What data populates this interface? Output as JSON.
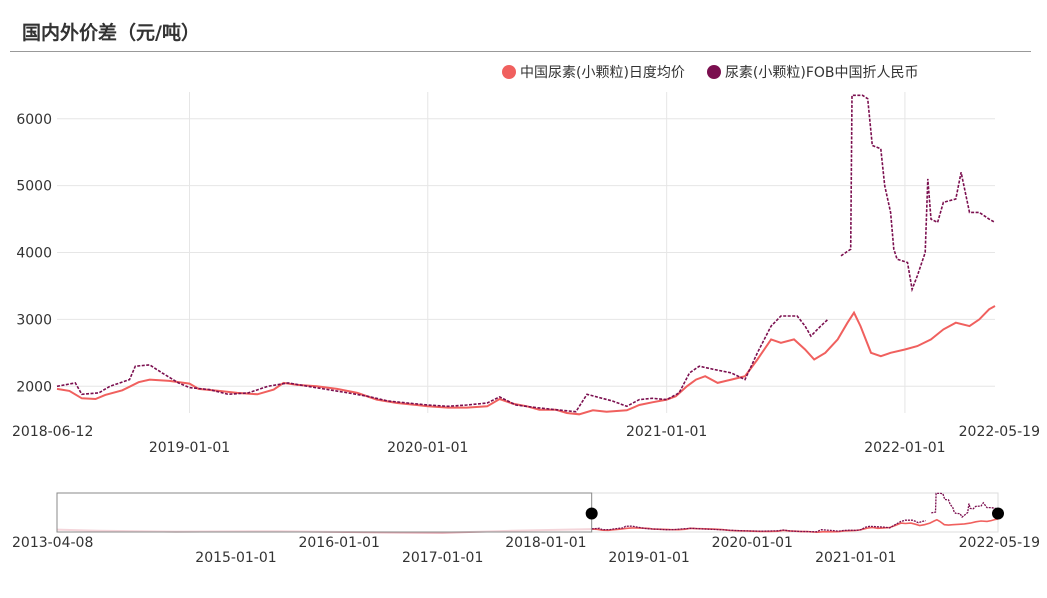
{
  "title": "国内外价差（元/吨）",
  "colors": {
    "domestic": "#f0605e",
    "fob": "#7b0f4f",
    "grid": "#e6e6e6"
  },
  "chart_data": {
    "type": "line",
    "title": "国内外价差（元/吨）",
    "legend_position": "top-right",
    "grid": true,
    "x_range": [
      "2018-06-12",
      "2022-05-19"
    ],
    "ylim": [
      1600,
      6400
    ],
    "y_ticks": [
      2000,
      3000,
      4000,
      5000,
      6000
    ],
    "x_ticks_top": [
      "2018-06-12",
      "2021-01-01",
      "2022-05-19"
    ],
    "x_ticks_bottom": [
      "2019-01-01",
      "2020-01-01",
      "2022-01-01"
    ],
    "series": [
      {
        "name": "中国尿素(小颗粒)日度均价",
        "color": "#f0605e",
        "points": [
          [
            "2018-06-12",
            1960
          ],
          [
            "2018-07-01",
            1930
          ],
          [
            "2018-07-20",
            1820
          ],
          [
            "2018-08-10",
            1810
          ],
          [
            "2018-08-25",
            1870
          ],
          [
            "2018-09-20",
            1940
          ],
          [
            "2018-10-15",
            2060
          ],
          [
            "2018-11-01",
            2100
          ],
          [
            "2018-12-01",
            2080
          ],
          [
            "2019-01-01",
            2040
          ],
          [
            "2019-01-15",
            1960
          ],
          [
            "2019-02-15",
            1930
          ],
          [
            "2019-03-15",
            1900
          ],
          [
            "2019-04-15",
            1880
          ],
          [
            "2019-05-10",
            1950
          ],
          [
            "2019-05-25",
            2050
          ],
          [
            "2019-06-15",
            2020
          ],
          [
            "2019-07-15",
            2000
          ],
          [
            "2019-08-15",
            1960
          ],
          [
            "2019-09-15",
            1900
          ],
          [
            "2019-10-15",
            1800
          ],
          [
            "2019-11-15",
            1750
          ],
          [
            "2019-12-15",
            1720
          ],
          [
            "2020-01-01",
            1700
          ],
          [
            "2020-02-01",
            1680
          ],
          [
            "2020-03-01",
            1680
          ],
          [
            "2020-04-01",
            1700
          ],
          [
            "2020-04-20",
            1810
          ],
          [
            "2020-05-10",
            1740
          ],
          [
            "2020-06-01",
            1700
          ],
          [
            "2020-06-20",
            1650
          ],
          [
            "2020-07-15",
            1650
          ],
          [
            "2020-08-01",
            1600
          ],
          [
            "2020-08-20",
            1580
          ],
          [
            "2020-09-10",
            1640
          ],
          [
            "2020-10-01",
            1620
          ],
          [
            "2020-11-01",
            1640
          ],
          [
            "2020-11-20",
            1720
          ],
          [
            "2020-12-10",
            1760
          ],
          [
            "2021-01-01",
            1800
          ],
          [
            "2021-01-15",
            1850
          ],
          [
            "2021-02-01",
            2000
          ],
          [
            "2021-02-15",
            2100
          ],
          [
            "2021-03-01",
            2150
          ],
          [
            "2021-03-20",
            2050
          ],
          [
            "2021-04-10",
            2100
          ],
          [
            "2021-05-01",
            2150
          ],
          [
            "2021-05-20",
            2400
          ],
          [
            "2021-06-10",
            2700
          ],
          [
            "2021-06-25",
            2650
          ],
          [
            "2021-07-15",
            2700
          ],
          [
            "2021-08-01",
            2550
          ],
          [
            "2021-08-15",
            2400
          ],
          [
            "2021-09-01",
            2500
          ],
          [
            "2021-09-20",
            2700
          ],
          [
            "2021-10-05",
            2950
          ],
          [
            "2021-10-15",
            3100
          ],
          [
            "2021-10-25",
            2900
          ],
          [
            "2021-11-10",
            2500
          ],
          [
            "2021-11-25",
            2450
          ],
          [
            "2021-12-10",
            2500
          ],
          [
            "2022-01-01",
            2550
          ],
          [
            "2022-01-20",
            2600
          ],
          [
            "2022-02-10",
            2700
          ],
          [
            "2022-03-01",
            2850
          ],
          [
            "2022-03-20",
            2950
          ],
          [
            "2022-04-10",
            2900
          ],
          [
            "2022-04-25",
            3000
          ],
          [
            "2022-05-10",
            3150
          ],
          [
            "2022-05-19",
            3200
          ]
        ]
      },
      {
        "name": "尿素(小颗粒)FOB中国折人民币",
        "color": "#7b0f4f",
        "points": [
          [
            "2018-06-12",
            2000
          ],
          [
            "2018-07-10",
            2050
          ],
          [
            "2018-07-20",
            1880
          ],
          [
            "2018-08-15",
            1900
          ],
          [
            "2018-09-01",
            2000
          ],
          [
            "2018-10-01",
            2100
          ],
          [
            "2018-10-10",
            2300
          ],
          [
            "2018-11-01",
            2320
          ],
          [
            "2018-11-20",
            2200
          ],
          [
            "2018-12-15",
            2050
          ],
          [
            "2019-01-01",
            1980
          ],
          [
            "2019-02-01",
            1950
          ],
          [
            "2019-03-01",
            1880
          ],
          [
            "2019-04-01",
            1900
          ],
          [
            "2019-05-01",
            2000
          ],
          [
            "2019-06-01",
            2050
          ],
          [
            "2019-07-01",
            2000
          ],
          [
            "2019-08-01",
            1950
          ],
          [
            "2019-09-01",
            1900
          ],
          [
            "2019-10-01",
            1850
          ],
          [
            "2019-11-01",
            1780
          ],
          [
            "2019-12-01",
            1750
          ],
          [
            "2020-01-01",
            1720
          ],
          [
            "2020-02-01",
            1700
          ],
          [
            "2020-03-01",
            1720
          ],
          [
            "2020-04-01",
            1750
          ],
          [
            "2020-04-20",
            1840
          ],
          [
            "2020-05-15",
            1720
          ],
          [
            "2020-06-15",
            1680
          ],
          [
            "2020-07-15",
            1650
          ],
          [
            "2020-08-15",
            1620
          ],
          [
            "2020-09-01",
            1880
          ],
          [
            "2020-09-20",
            1830
          ],
          [
            "2020-10-10",
            1780
          ],
          [
            "2020-11-01",
            1700
          ],
          [
            "2020-11-20",
            1800
          ],
          [
            "2020-12-10",
            1820
          ],
          [
            "2021-01-01",
            1800
          ],
          [
            "2021-01-20",
            1900
          ],
          [
            "2021-02-05",
            2200
          ],
          [
            "2021-02-20",
            2300
          ],
          [
            "2021-03-15",
            2250
          ],
          [
            "2021-04-10",
            2200
          ],
          [
            "2021-05-01",
            2100
          ],
          [
            "2021-05-20",
            2500
          ],
          [
            "2021-06-10",
            2900
          ],
          [
            "2021-06-25",
            3050
          ],
          [
            "2021-07-20",
            3050
          ],
          [
            "2021-08-01",
            2900
          ],
          [
            "2021-08-10",
            2750
          ],
          [
            "2021-08-25",
            2900
          ],
          [
            "2021-09-05",
            3000
          ],
          [
            "2021-09-15",
            null
          ],
          [
            "2021-09-25",
            3950
          ],
          [
            "2021-10-10",
            4050
          ],
          [
            "2021-10-12",
            6350
          ],
          [
            "2021-10-28",
            6350
          ],
          [
            "2021-11-05",
            6300
          ],
          [
            "2021-11-12",
            5600
          ],
          [
            "2021-11-25",
            5550
          ],
          [
            "2021-12-01",
            5000
          ],
          [
            "2021-12-10",
            4600
          ],
          [
            "2021-12-15",
            4050
          ],
          [
            "2021-12-20",
            3900
          ],
          [
            "2022-01-05",
            3850
          ],
          [
            "2022-01-12",
            3450
          ],
          [
            "2022-01-20",
            3650
          ],
          [
            "2022-02-01",
            4000
          ],
          [
            "2022-02-05",
            5100
          ],
          [
            "2022-02-10",
            4500
          ],
          [
            "2022-02-20",
            4450
          ],
          [
            "2022-03-01",
            4750
          ],
          [
            "2022-03-20",
            4800
          ],
          [
            "2022-03-28",
            5200
          ],
          [
            "2022-04-10",
            4600
          ],
          [
            "2022-04-25",
            4600
          ],
          [
            "2022-05-10",
            4500
          ],
          [
            "2022-05-19",
            4450
          ]
        ]
      }
    ],
    "slider": {
      "x_range": [
        "2013-04-08",
        "2022-05-19"
      ],
      "window": [
        "2018-06-12",
        "2022-05-19"
      ],
      "tick_labels_top": [
        "2013-04-08",
        "2016-01-01",
        "2018-01-01",
        "2020-01-01",
        "2022-05-19"
      ],
      "tick_labels_bottom": [
        "2015-01-01",
        "2017-01-01",
        "2019-01-01",
        "2021-01-01"
      ]
    }
  },
  "legend": [
    {
      "label": "中国尿素(小颗粒)日度均价",
      "color": "#f0605e"
    },
    {
      "label": "尿素(小颗粒)FOB中国折人民币",
      "color": "#7b0f4f"
    }
  ]
}
